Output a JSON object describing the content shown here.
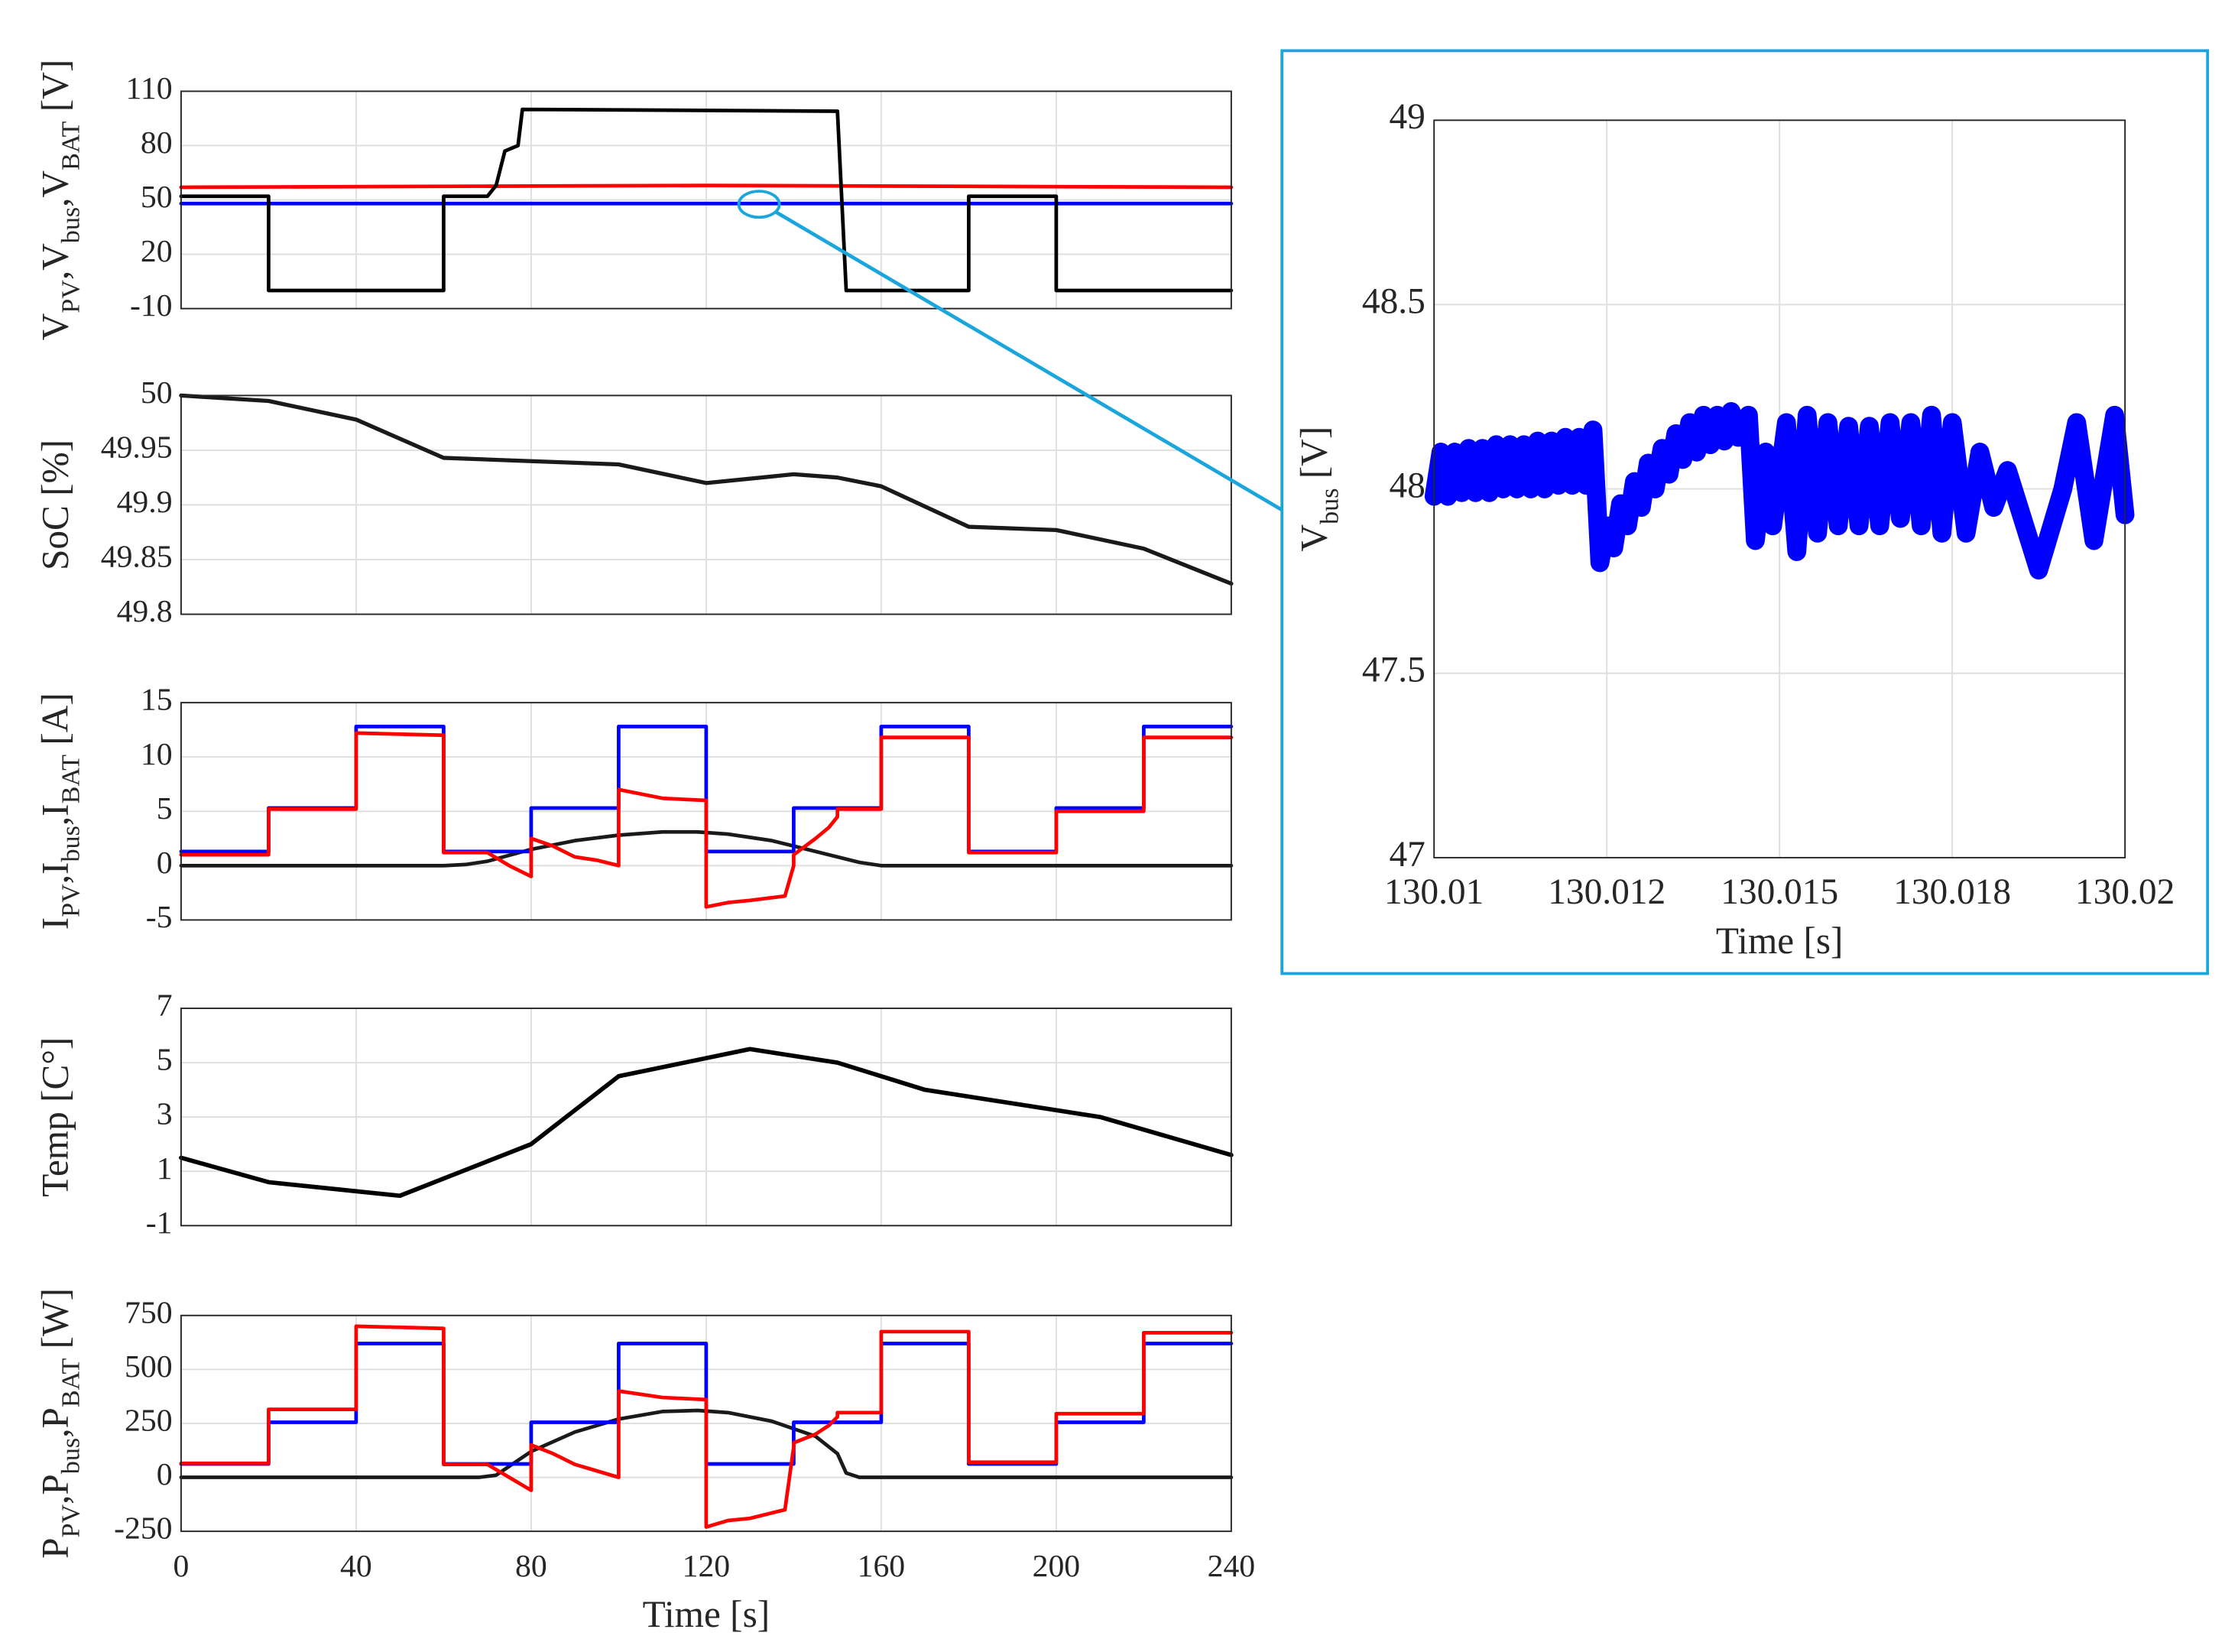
{
  "chart_data": [
    {
      "type": "line",
      "ylabel": [
        "V",
        "PV",
        ",V",
        "bus",
        ",V",
        "BAT",
        " [V]"
      ],
      "xlim": [
        0,
        240
      ],
      "xticks": [
        0,
        40,
        80,
        120,
        160,
        200,
        240
      ],
      "ylim": [
        -10,
        110
      ],
      "yticks": [
        -10,
        20,
        50,
        80,
        110
      ],
      "grid": true,
      "series": [
        {
          "color": "#ff0000",
          "x": [
            0,
            120,
            240
          ],
          "values": [
            57,
            58,
            57
          ]
        },
        {
          "color": "#0000ff",
          "x": [
            0,
            240
          ],
          "values": [
            48,
            48
          ]
        },
        {
          "color": "#000000",
          "x": [
            0,
            20,
            20,
            60,
            60,
            70,
            72,
            74,
            77,
            78,
            150,
            152,
            180,
            180,
            200,
            200,
            240
          ],
          "values": [
            52,
            52,
            0,
            0,
            52,
            52,
            58,
            77,
            80,
            100,
            99,
            0,
            0,
            52,
            52,
            0,
            0
          ]
        }
      ]
    },
    {
      "type": "line",
      "ylabel": [
        "SoC [%]"
      ],
      "xlim": [
        0,
        240
      ],
      "xticks": [
        0,
        40,
        80,
        120,
        160,
        200,
        240
      ],
      "ylim": [
        49.8,
        50
      ],
      "yticks": [
        49.8,
        49.85,
        49.9,
        49.95,
        50
      ],
      "grid": true,
      "series": [
        {
          "color": "#1a1a1a",
          "x": [
            0,
            20,
            40,
            60,
            80,
            100,
            120,
            140,
            150,
            160,
            180,
            200,
            220,
            240
          ],
          "values": [
            50,
            49.995,
            49.978,
            49.943,
            49.94,
            49.937,
            49.92,
            49.928,
            49.925,
            49.917,
            49.88,
            49.877,
            49.86,
            49.828
          ]
        }
      ]
    },
    {
      "type": "line",
      "ylabel": [
        "I",
        "PV",
        ",I",
        "bus",
        ",I",
        "BAT",
        " [A]"
      ],
      "xlim": [
        0,
        240
      ],
      "xticks": [
        0,
        40,
        80,
        120,
        160,
        200,
        240
      ],
      "ylim": [
        -5,
        15
      ],
      "yticks": [
        -5,
        0,
        5,
        10,
        15
      ],
      "grid": true,
      "series": [
        {
          "color": "#1a1a1a",
          "x": [
            0,
            60,
            65,
            70,
            80,
            90,
            100,
            110,
            118,
            125,
            135,
            145,
            155,
            160,
            240
          ],
          "values": [
            0,
            0,
            0.1,
            0.4,
            1.5,
            2.3,
            2.8,
            3.1,
            3.1,
            2.9,
            2.3,
            1.3,
            0.3,
            0,
            0
          ]
        },
        {
          "color": "#0000ff",
          "x": [
            0,
            20,
            20,
            40,
            40,
            60,
            60,
            80,
            80,
            100,
            100,
            120,
            120,
            140,
            140,
            160,
            160,
            180,
            180,
            200,
            200,
            220,
            220,
            240
          ],
          "values": [
            1.3,
            1.3,
            5.3,
            5.3,
            12.8,
            12.8,
            1.3,
            1.3,
            5.3,
            5.3,
            12.8,
            12.8,
            1.3,
            1.3,
            5.3,
            5.3,
            12.8,
            12.8,
            1.3,
            1.3,
            5.3,
            5.3,
            12.8,
            12.8
          ]
        },
        {
          "color": "#ff0000",
          "x": [
            0,
            20,
            20,
            40,
            40,
            60,
            60,
            70,
            75,
            80,
            80,
            85,
            90,
            95,
            100,
            100,
            110,
            120,
            120,
            125,
            130,
            138,
            140,
            140,
            145,
            148,
            150,
            150,
            160,
            160,
            180,
            180,
            200,
            200,
            220,
            220,
            240
          ],
          "values": [
            1,
            1,
            5.2,
            5.2,
            12.2,
            12,
            1.2,
            1.2,
            0,
            -1,
            2.5,
            1.8,
            0.8,
            0.5,
            0,
            7,
            6.2,
            6,
            -3.8,
            -3.4,
            -3.2,
            -2.8,
            0,
            1,
            2.5,
            3.5,
            4.5,
            5.2,
            5.2,
            11.8,
            11.8,
            1.2,
            1.2,
            5,
            5,
            11.8,
            11.8
          ]
        }
      ]
    },
    {
      "type": "line",
      "ylabel": [
        "Temp [C°]"
      ],
      "xlim": [
        0,
        240
      ],
      "xticks": [
        0,
        40,
        80,
        120,
        160,
        200,
        240
      ],
      "ylim": [
        -1,
        7
      ],
      "yticks": [
        -1,
        1,
        3,
        5,
        7
      ],
      "grid": true,
      "series": [
        {
          "color": "#000000",
          "x": [
            0,
            20,
            50,
            80,
            100,
            130,
            150,
            170,
            210,
            240
          ],
          "values": [
            1.5,
            0.6,
            0.1,
            2,
            4.5,
            5.5,
            5,
            4,
            3,
            1.6
          ]
        }
      ]
    },
    {
      "type": "line",
      "ylabel": [
        "P",
        "PV",
        ",P",
        "bus",
        ",P",
        "BAT",
        " [W]"
      ],
      "xlabel": "Time [s]",
      "xlim": [
        0,
        240
      ],
      "xticks": [
        0,
        40,
        80,
        120,
        160,
        200,
        240
      ],
      "ylim": [
        -250,
        750
      ],
      "yticks": [
        -250,
        0,
        250,
        500,
        750
      ],
      "grid": true,
      "series": [
        {
          "color": "#1a1a1a",
          "x": [
            0,
            68,
            72,
            80,
            90,
            100,
            110,
            118,
            125,
            135,
            145,
            150,
            152,
            155,
            240
          ],
          "values": [
            0,
            0,
            10,
            120,
            210,
            270,
            305,
            310,
            300,
            260,
            190,
            110,
            20,
            0,
            0
          ]
        },
        {
          "color": "#0000ff",
          "x": [
            0,
            20,
            20,
            40,
            40,
            60,
            60,
            80,
            80,
            100,
            100,
            120,
            120,
            140,
            140,
            160,
            160,
            180,
            180,
            200,
            200,
            220,
            220,
            240
          ],
          "values": [
            62,
            62,
            255,
            255,
            620,
            620,
            62,
            62,
            255,
            255,
            620,
            620,
            62,
            62,
            255,
            255,
            620,
            620,
            62,
            62,
            255,
            255,
            620,
            620
          ]
        },
        {
          "color": "#ff0000",
          "x": [
            0,
            20,
            20,
            40,
            40,
            60,
            60,
            70,
            75,
            80,
            80,
            85,
            90,
            95,
            100,
            100,
            110,
            120,
            120,
            125,
            130,
            138,
            140,
            140,
            145,
            148,
            150,
            150,
            160,
            160,
            180,
            180,
            200,
            200,
            220,
            220,
            240
          ],
          "values": [
            65,
            65,
            315,
            315,
            700,
            690,
            60,
            60,
            0,
            -60,
            150,
            110,
            60,
            30,
            0,
            400,
            370,
            360,
            -230,
            -200,
            -190,
            -150,
            140,
            160,
            200,
            240,
            280,
            300,
            300,
            675,
            675,
            70,
            70,
            295,
            295,
            670,
            670
          ]
        }
      ]
    },
    {
      "type": "line",
      "ylabel": [
        "V",
        "bus",
        " [V]"
      ],
      "xlabel": "Time [s]",
      "xlim": [
        130.01,
        130.02
      ],
      "xticks": [
        130.01,
        {
          "value": 130.0125,
          "label": "130.012"
        },
        130.015,
        {
          "value": 130.0175,
          "label": "130.018"
        },
        130.02
      ],
      "ylim": [
        47,
        49
      ],
      "yticks": [
        47,
        47.5,
        48,
        48.5,
        49
      ],
      "grid": true,
      "series": [
        {
          "color": "#0000ff",
          "x": [
            130.01,
            130.0101,
            130.0102,
            130.0103,
            130.0104,
            130.0105,
            130.0106,
            130.0107,
            130.0108,
            130.0109,
            130.011,
            130.0111,
            130.0112,
            130.0113,
            130.0114,
            130.0115,
            130.0116,
            130.0117,
            130.0118,
            130.0119,
            130.012,
            130.0121,
            130.0122,
            130.0123,
            130.0124,
            130.0125,
            130.0126,
            130.0127,
            130.0128,
            130.0129,
            130.013,
            130.0131,
            130.0132,
            130.0133,
            130.0134,
            130.0135,
            130.0136,
            130.0137,
            130.0138,
            130.0139,
            130.014,
            130.0141,
            130.0142,
            130.0143,
            130.0144,
            130.01455,
            130.01465,
            130.0148,
            130.0149,
            130.0151,
            130.01525,
            130.0154,
            130.01555,
            130.0157,
            130.01585,
            130.016,
            130.01615,
            130.0163,
            130.01645,
            130.0166,
            130.01675,
            130.0169,
            130.01705,
            130.0172,
            130.01735,
            130.0175,
            130.0177,
            130.0179,
            130.0181,
            130.0183,
            130.01875,
            130.0191,
            130.0193,
            130.01955,
            130.01985,
            130.02
          ],
          "values": [
            47.98,
            48.1,
            47.98,
            48.1,
            47.99,
            48.11,
            47.99,
            48.11,
            47.99,
            48.12,
            48.0,
            48.12,
            48.0,
            48.12,
            48.0,
            48.13,
            48.0,
            48.13,
            48.01,
            48.14,
            48.01,
            48.14,
            48.01,
            48.16,
            47.8,
            47.9,
            47.84,
            47.96,
            47.9,
            48.02,
            47.95,
            48.07,
            48.0,
            48.11,
            48.04,
            48.15,
            48.08,
            48.18,
            48.1,
            48.2,
            48.12,
            48.2,
            48.13,
            48.21,
            48.14,
            48.2,
            47.86,
            48.1,
            47.9,
            48.18,
            47.83,
            48.2,
            47.88,
            48.18,
            47.9,
            48.17,
            47.9,
            48.17,
            47.9,
            48.18,
            47.92,
            48.18,
            47.9,
            48.2,
            47.88,
            48.18,
            47.88,
            48.1,
            47.95,
            48.05,
            47.78,
            48.0,
            48.18,
            47.86,
            48.2,
            47.93
          ]
        }
      ]
    }
  ]
}
